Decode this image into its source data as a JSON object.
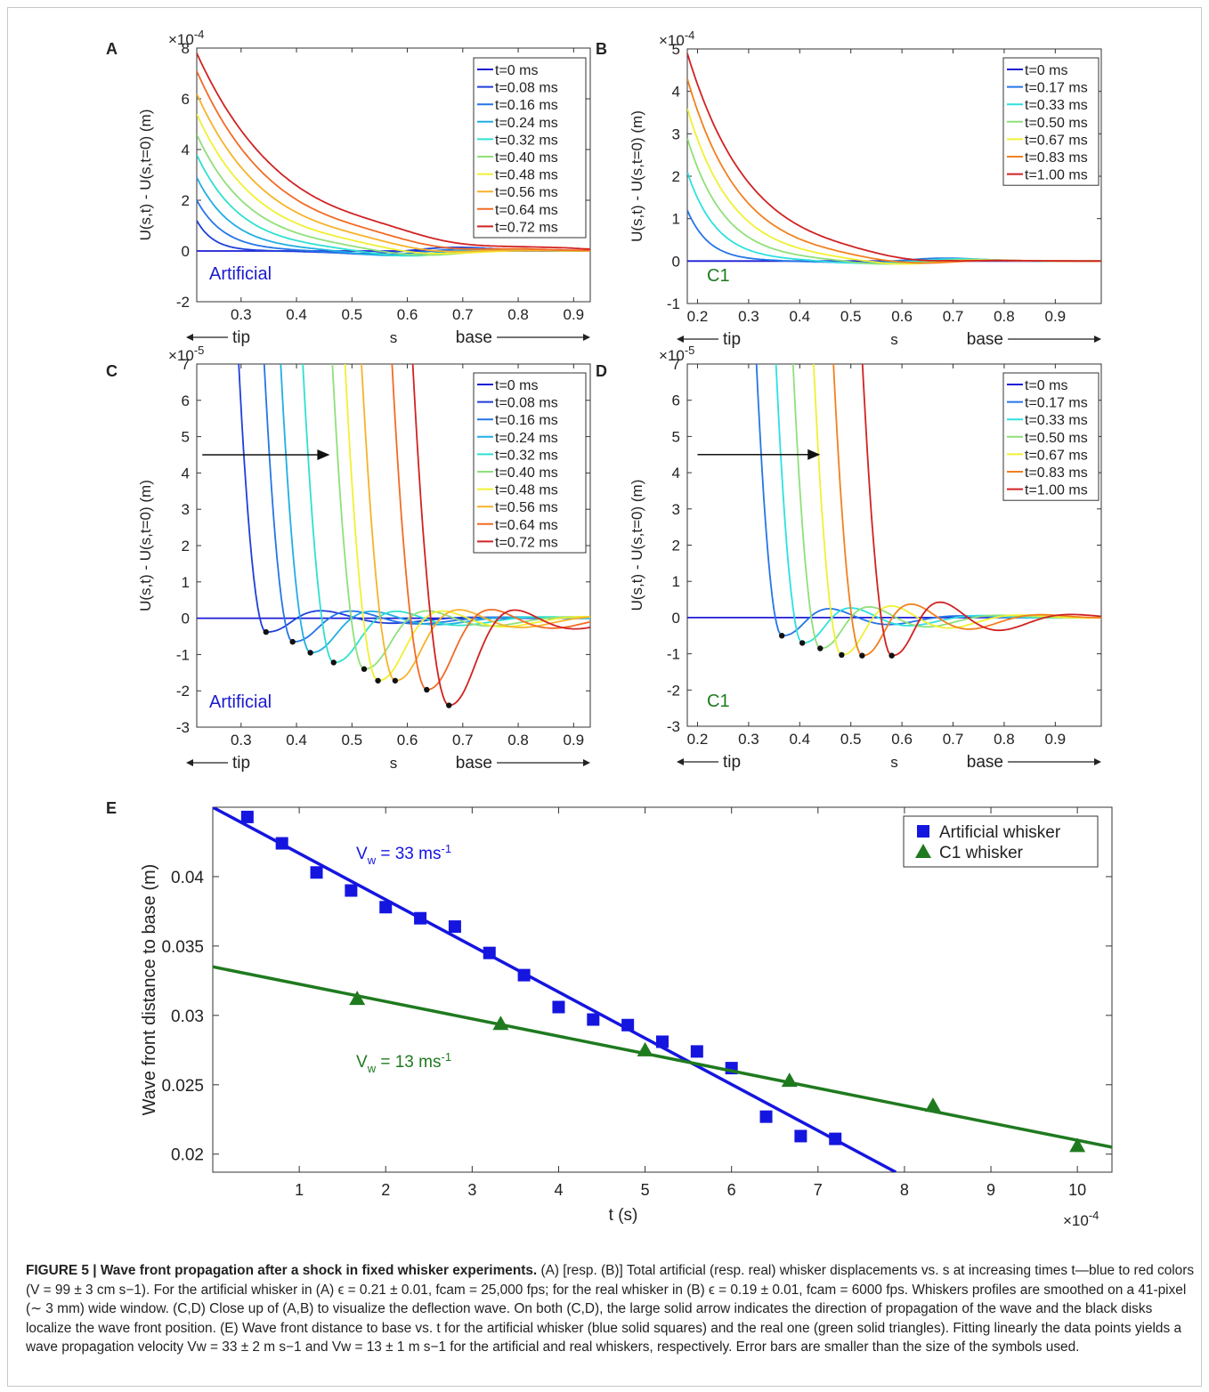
{
  "figure_caption": {
    "label": "FIGURE 5 | Wave front propagation after a shock in fixed whisker experiments.",
    "text": "(A) [resp. (B)] Total artificial (resp. real) whisker displacements vs. s at increasing times t—blue to red colors (V = 99 ± 3 cm s−1). For the artificial whisker in (A) ϵ = 0.21 ± 0.01, fcam = 25,000 fps; for the real whisker in (B) ϵ = 0.19 ± 0.01, fcam = 6000 fps. Whiskers profiles are smoothed on a 41-pixel (∼ 3 mm) wide window. (C,D) Close up of (A,B) to visualize the deflection wave. On both (C,D), the large solid arrow indicates the direction of propagation of the wave and the black disks localize the wave front position. (E) Wave front distance to base vs. t for the artificial whisker (blue solid squares) and the real one (green solid triangles). Fitting linearly the data points yields a wave propagation velocity Vw = 33 ± 2 m s−1 and Vw = 13 ± 1 m s−1 for the artificial and real whiskers, respectively. Error bars are smaller than the size of the symbols used."
  },
  "chart_data": [
    {
      "panel": "A",
      "type": "line",
      "ylabel": "U(s,t) - U(s,t=0) (m)",
      "xlabel": "s",
      "x_exponent": "",
      "y_exponent": "×10-4",
      "xlim": [
        0.22,
        0.93
      ],
      "ylim": [
        -2,
        8
      ],
      "xticks": [
        0.3,
        0.4,
        0.5,
        0.6,
        0.7,
        0.8,
        0.9
      ],
      "yticks": [
        -2,
        0,
        2,
        4,
        6,
        8
      ],
      "annotation": "Artificial",
      "annotation_color": "#1a1ad0",
      "tip_label": "tip",
      "base_label": "base",
      "legend": [
        "t=0 ms",
        "t=0.08 ms",
        "t=0.16 ms",
        "t=0.24 ms",
        "t=0.32 ms",
        "t=0.40 ms",
        "t=0.48 ms",
        "t=0.56 ms",
        "t=0.64 ms",
        "t=0.72 ms"
      ],
      "colors": [
        "#1c1cd6",
        "#1f3fd9",
        "#2575e6",
        "#21aee3",
        "#2ee0cf",
        "#8fe07a",
        "#f0f033",
        "#f7b22a",
        "#f26b26",
        "#d12222"
      ],
      "start_values": [
        0,
        1.2,
        2.0,
        2.9,
        3.8,
        4.6,
        5.4,
        6.2,
        7.1,
        7.8
      ],
      "front_positions": [
        0.22,
        0.28,
        0.33,
        0.37,
        0.41,
        0.45,
        0.49,
        0.53,
        0.57,
        0.62
      ]
    },
    {
      "panel": "B",
      "type": "line",
      "ylabel": "U(s,t) - U(s,t=0) (m)",
      "xlabel": "s",
      "x_exponent": "",
      "y_exponent": "×10-4",
      "xlim": [
        0.18,
        0.99
      ],
      "ylim": [
        -1,
        5
      ],
      "xticks": [
        0.2,
        0.3,
        0.4,
        0.5,
        0.6,
        0.7,
        0.8,
        0.9
      ],
      "yticks": [
        -1,
        0,
        1,
        2,
        3,
        4,
        5
      ],
      "annotation": "C1",
      "annotation_color": "#1f7a1f",
      "tip_label": "tip",
      "base_label": "base",
      "legend": [
        "t=0 ms",
        "t=0.17 ms",
        "t=0.33 ms",
        "t=0.50 ms",
        "t=0.67 ms",
        "t=0.83 ms",
        "t=1.00 ms"
      ],
      "colors": [
        "#1c1cd6",
        "#2575e6",
        "#2ee0e0",
        "#8fe07a",
        "#f0f033",
        "#f2801f",
        "#d12222"
      ],
      "start_values": [
        0,
        1.2,
        2.1,
        2.9,
        3.6,
        4.3,
        4.9
      ],
      "front_positions": [
        0.19,
        0.27,
        0.31,
        0.35,
        0.39,
        0.43,
        0.48
      ]
    },
    {
      "panel": "C",
      "type": "line",
      "ylabel": "U(s,t) - U(s,t=0) (m)",
      "xlabel": "s",
      "y_exponent": "×10-5",
      "xlim": [
        0.22,
        0.93
      ],
      "ylim": [
        -3,
        7
      ],
      "xticks": [
        0.3,
        0.4,
        0.5,
        0.6,
        0.7,
        0.8,
        0.9
      ],
      "yticks": [
        -3,
        -2,
        -1,
        0,
        1,
        2,
        3,
        4,
        5,
        6,
        7
      ],
      "annotation": "Artificial",
      "annotation_color": "#1a1ad0",
      "tip_label": "tip",
      "base_label": "base",
      "legend": [
        "t=0 ms",
        "t=0.08 ms",
        "t=0.16 ms",
        "t=0.24 ms",
        "t=0.32 ms",
        "t=0.40 ms",
        "t=0.48 ms",
        "t=0.56 ms",
        "t=0.64 ms",
        "t=0.72 ms"
      ],
      "colors": [
        "#1c1cd6",
        "#1f3fd9",
        "#2575e6",
        "#21aee3",
        "#2ee0cf",
        "#8fe07a",
        "#f0f033",
        "#f7b22a",
        "#f26b26",
        "#d12222"
      ],
      "arrow": {
        "from": [
          0.23,
          4.5
        ],
        "to": [
          0.46,
          4.5
        ]
      },
      "minima": [
        [
          0.345,
          -0.38
        ],
        [
          0.393,
          -0.65
        ],
        [
          0.425,
          -0.95
        ],
        [
          0.467,
          -1.22
        ],
        [
          0.522,
          -1.4
        ],
        [
          0.547,
          -1.72
        ],
        [
          0.578,
          -1.72
        ],
        [
          0.635,
          -1.97
        ],
        [
          0.675,
          -2.4
        ]
      ]
    },
    {
      "panel": "D",
      "type": "line",
      "ylabel": "U(s,t) - U(s,t=0) (m)",
      "xlabel": "s",
      "y_exponent": "×10-5",
      "xlim": [
        0.18,
        0.99
      ],
      "ylim": [
        -3,
        7
      ],
      "xticks": [
        0.2,
        0.3,
        0.4,
        0.5,
        0.6,
        0.7,
        0.8,
        0.9
      ],
      "yticks": [
        -3,
        -2,
        -1,
        0,
        1,
        2,
        3,
        4,
        5,
        6,
        7
      ],
      "annotation": "C1",
      "annotation_color": "#1f7a1f",
      "tip_label": "tip",
      "base_label": "base",
      "legend": [
        "t=0 ms",
        "t=0.17 ms",
        "t=0.33 ms",
        "t=0.50 ms",
        "t=0.67 ms",
        "t=0.83 ms",
        "t=1.00 ms"
      ],
      "colors": [
        "#1c1cd6",
        "#2575e6",
        "#2ee0e0",
        "#8fe07a",
        "#f0f033",
        "#f2801f",
        "#d12222"
      ],
      "arrow": {
        "from": [
          0.2,
          4.5
        ],
        "to": [
          0.44,
          4.5
        ]
      },
      "minima": [
        [
          0.365,
          -0.5
        ],
        [
          0.405,
          -0.7
        ],
        [
          0.44,
          -0.85
        ],
        [
          0.482,
          -1.03
        ],
        [
          0.522,
          -1.05
        ],
        [
          0.58,
          -1.05
        ]
      ]
    },
    {
      "panel": "E",
      "type": "scatter",
      "xlabel": "t (s)",
      "ylabel": "Wave front distance to base (m)",
      "x_exponent": "×10-4",
      "xlim": [
        0,
        10.4
      ],
      "ylim": [
        0.0187,
        0.045
      ],
      "xticks": [
        1,
        2,
        3,
        4,
        5,
        6,
        7,
        8,
        9,
        10
      ],
      "yticks": [
        0.02,
        0.025,
        0.03,
        0.035,
        0.04
      ],
      "ytick_labels": [
        "0.02",
        "0.025",
        "0.03",
        "0.035",
        "0.04"
      ],
      "series": [
        {
          "name": "Artificial whisker",
          "color": "#1515e0",
          "marker": "square",
          "x": [
            0.4,
            0.8,
            1.2,
            1.6,
            2.0,
            2.4,
            2.8,
            3.2,
            3.6,
            4.0,
            4.4,
            4.8,
            5.2,
            5.6,
            6.0,
            6.4,
            6.8,
            7.2
          ],
          "y": [
            0.0443,
            0.0424,
            0.0403,
            0.039,
            0.0378,
            0.037,
            0.0364,
            0.0345,
            0.0329,
            0.0306,
            0.0297,
            0.0293,
            0.0281,
            0.0274,
            0.0262,
            0.0227,
            0.0213,
            0.0211
          ],
          "fit": [
            [
              0,
              0.045
            ],
            [
              7.9,
              0.0187
            ]
          ],
          "fit_label": "Vw = 33 ms-1"
        },
        {
          "name": "C1 whisker",
          "color": "#1f7a1f",
          "marker": "triangle",
          "x": [
            1.67,
            3.33,
            5.0,
            6.67,
            8.33,
            10.0
          ],
          "y": [
            0.0312,
            0.0294,
            0.0275,
            0.0253,
            0.0235,
            0.0206
          ],
          "fit": [
            [
              0,
              0.0335
            ],
            [
              10.4,
              0.0205
            ]
          ],
          "fit_label": "Vw = 13 ms-1"
        }
      ]
    }
  ]
}
